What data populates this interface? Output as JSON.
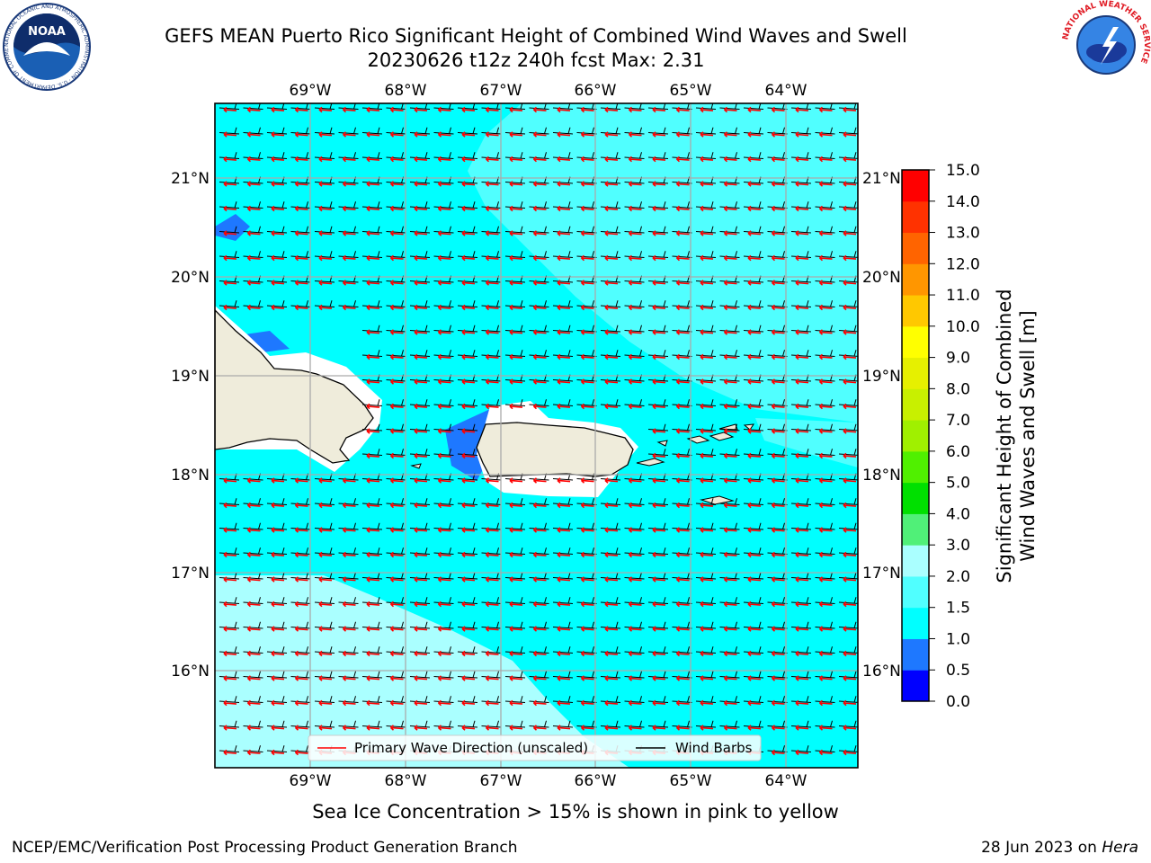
{
  "header": {
    "title_line1": "GEFS MEAN Puerto Rico Significant Height of Combined Wind Waves and Swell",
    "title_line2": "20230626 t12z 240h fcst   Max: 2.31",
    "noaa_logo_text": "NOAA",
    "noaa_ring_text": "NATIONAL OCEANIC AND ATMOSPHERIC ADMINISTRATION · U.S. DEPARTMENT OF COMMERCE",
    "nws_ring_text": "NATIONAL WEATHER SERVICE"
  },
  "map": {
    "lon_labels": [
      "69°W",
      "68°W",
      "67°W",
      "66°W",
      "65°W",
      "64°W"
    ],
    "lat_labels": [
      "21°N",
      "20°N",
      "19°N",
      "18°N",
      "17°N",
      "16°N"
    ],
    "legend": {
      "wave_label": "Primary Wave Direction (unscaled)",
      "barb_label": "Wind Barbs",
      "wave_color": "#ff0000",
      "barb_color": "#000000"
    },
    "ocean_color": "#00ffff",
    "land_color": "#efecdb"
  },
  "colorbar": {
    "label_line1": "Significant Height of Combined",
    "label_line2": "Wind Waves and Swell [m]",
    "ticks": [
      "0.0",
      "0.5",
      "1.0",
      "1.5",
      "2.0",
      "3.0",
      "4.0",
      "5.0",
      "6.0",
      "7.0",
      "8.0",
      "9.0",
      "10.0",
      "11.0",
      "12.0",
      "13.0",
      "14.0",
      "15.0"
    ],
    "colors": [
      "#0000ff",
      "#1e78ff",
      "#00ffff",
      "#50ffff",
      "#aaffff",
      "#50f078",
      "#00e000",
      "#50f000",
      "#a0f000",
      "#c8f000",
      "#e6f000",
      "#ffff00",
      "#ffc800",
      "#ff9600",
      "#ff6400",
      "#ff3200",
      "#ff0000"
    ]
  },
  "note": "Sea Ice Concentration > 15% is shown in pink to yellow",
  "footer": {
    "left": "NCEP/EMC/Verification Post Processing Product Generation Branch",
    "right_prefix": "28 Jun 2023 on ",
    "right_host": "Hera"
  }
}
